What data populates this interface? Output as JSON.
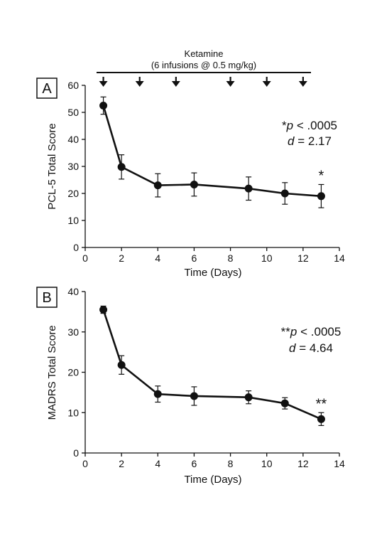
{
  "figure": {
    "ketamine_title": "Ketamine",
    "ketamine_subtitle": "(6 infusions @ 0.5 mg/kg)",
    "infusion_days": [
      1,
      3,
      5,
      8,
      10,
      12
    ]
  },
  "chart_data": [
    {
      "type": "line",
      "panel": "A",
      "xlabel": "Time (Days)",
      "ylabel": "PCL-5 Total Score",
      "xlim": [
        0,
        14
      ],
      "ylim": [
        0,
        60
      ],
      "xticks": [
        0,
        2,
        4,
        6,
        8,
        10,
        12,
        14
      ],
      "yticks": [
        0,
        10,
        20,
        30,
        40,
        50,
        60
      ],
      "grid": false,
      "x": [
        1,
        2,
        4,
        6,
        9,
        11,
        13
      ],
      "series": [
        {
          "values": [
            52.5,
            29.8,
            23.0,
            23.3,
            21.8,
            20.0,
            19.0
          ],
          "error": [
            3.2,
            4.5,
            4.3,
            4.3,
            4.3,
            4.0,
            4.3
          ]
        }
      ],
      "annotations": [
        {
          "text": "*",
          "x": 13
        }
      ],
      "stats": {
        "p_prefix": "*",
        "p_symbol": "p",
        "p_value": "< .0005",
        "d_symbol": "d",
        "d_value": "= 2.17"
      }
    },
    {
      "type": "line",
      "panel": "B",
      "xlabel": "Time (Days)",
      "ylabel": "MADRS Total Score",
      "xlim": [
        0,
        14
      ],
      "ylim": [
        0,
        40
      ],
      "xticks": [
        0,
        2,
        4,
        6,
        8,
        10,
        12,
        14
      ],
      "yticks": [
        0,
        10,
        20,
        30,
        40
      ],
      "grid": false,
      "x": [
        1,
        2,
        4,
        6,
        9,
        11,
        13
      ],
      "series": [
        {
          "values": [
            35.5,
            21.8,
            14.6,
            14.1,
            13.8,
            12.3,
            8.4
          ],
          "error": [
            0.9,
            2.3,
            2.0,
            2.3,
            1.6,
            1.4,
            1.6
          ]
        }
      ],
      "annotations": [
        {
          "text": "**",
          "x": 13
        }
      ],
      "stats": {
        "p_prefix": "**",
        "p_symbol": "p",
        "p_value": "< .0005",
        "d_symbol": "d",
        "d_value": "= 4.64"
      }
    }
  ]
}
